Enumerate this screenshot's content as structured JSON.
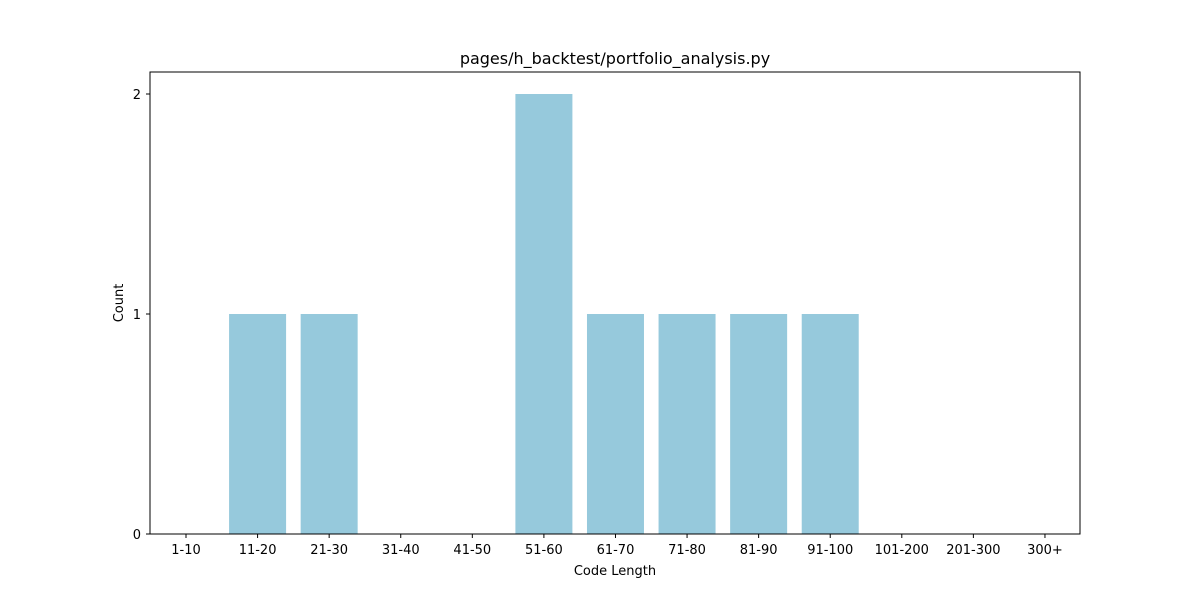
{
  "chart_data": {
    "type": "bar",
    "title": "pages/h_backtest/portfolio_analysis.py",
    "xlabel": "Code Length",
    "ylabel": "Count",
    "categories": [
      "1-10",
      "11-20",
      "21-30",
      "31-40",
      "41-50",
      "51-60",
      "61-70",
      "71-80",
      "81-90",
      "91-100",
      "101-200",
      "201-300",
      "300+"
    ],
    "values": [
      0,
      1,
      1,
      0,
      0,
      2,
      1,
      1,
      1,
      1,
      0,
      0,
      0
    ],
    "yticks": [
      0,
      1,
      2
    ],
    "ylim": [
      0,
      2.1
    ],
    "grid": false,
    "legend": "none",
    "bar_color": "#96c9dc"
  }
}
